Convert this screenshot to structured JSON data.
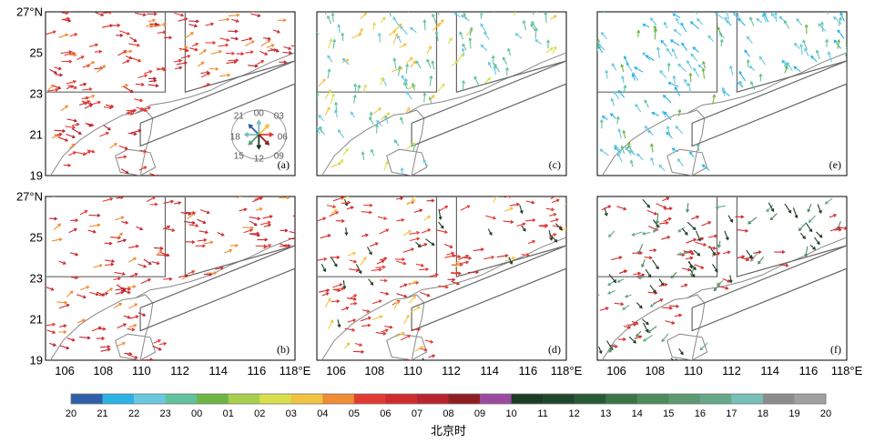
{
  "lat_tick_labels": [
    "27°N",
    "25",
    "23",
    "21",
    "19"
  ],
  "lon_tick_labels": [
    [
      "106",
      "108",
      "110",
      "112",
      "114",
      "116",
      "118°E"
    ],
    [
      "106",
      "108",
      "110",
      "112",
      "114",
      "116",
      "118°E"
    ],
    [
      "106",
      "108",
      "110",
      "112",
      "114",
      "116",
      "118°E"
    ]
  ],
  "panels": [
    {
      "letter": "(a)",
      "dominant_hours": [
        "05",
        "06",
        "07",
        "04"
      ]
    },
    {
      "letter": "(c)",
      "dominant_hours": [
        "23",
        "22",
        "02",
        "03"
      ]
    },
    {
      "letter": "(e)",
      "dominant_hours": [
        "22",
        "21",
        "23",
        "00"
      ]
    },
    {
      "letter": "(b)",
      "dominant_hours": [
        "06",
        "07",
        "05",
        "04"
      ]
    },
    {
      "letter": "(d)",
      "dominant_hours": [
        "05",
        "06",
        "03",
        "10"
      ]
    },
    {
      "letter": "(f)",
      "dominant_hours": [
        "06",
        "10",
        "14",
        "16"
      ]
    }
  ],
  "compass": {
    "labels": [
      "21",
      "00",
      "03",
      "18",
      "06",
      "15",
      "12",
      "09"
    ]
  },
  "colorbar": {
    "hour_labels": [
      "20",
      "21",
      "22",
      "23",
      "00",
      "01",
      "02",
      "03",
      "04",
      "05",
      "06",
      "07",
      "08",
      "09",
      "10",
      "11",
      "12",
      "13",
      "14",
      "15",
      "16",
      "17",
      "18",
      "19",
      "20"
    ],
    "colors": [
      "#2f5fa8",
      "#2bb3e6",
      "#6ac7e0",
      "#62c29b",
      "#6cb744",
      "#a7cf4c",
      "#d8df4a",
      "#f2c241",
      "#ee8d33",
      "#e33a32",
      "#d02c2e",
      "#b8232e",
      "#8e1e22",
      "#9b4aa0",
      "#1d3c24",
      "#21472b",
      "#2a5a35",
      "#3a7548",
      "#4d8a5c",
      "#5c9a72",
      "#66a889",
      "#78bfb7",
      "#8c8c8c",
      "#a0a0a0"
    ],
    "title": "北京时"
  }
}
